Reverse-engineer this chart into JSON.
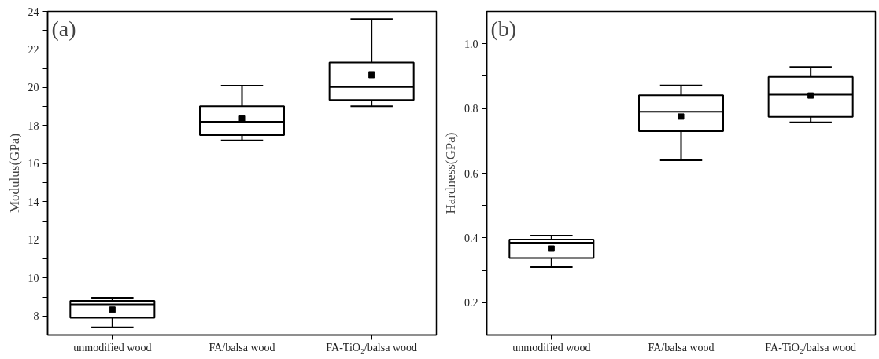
{
  "chart_data": [
    {
      "type": "box",
      "ylabel": "Modulus(GPa)",
      "annotations": [
        "(a)"
      ],
      "categories": [
        "unmodified wood",
        "FA/balsa wood",
        "FA-TiO₂/balsa wood"
      ],
      "boxes": [
        {
          "low": 7.4,
          "q1": 7.91,
          "median": 8.61,
          "q3": 8.79,
          "high": 8.96,
          "mean": 8.33
        },
        {
          "low": 17.22,
          "q1": 17.5,
          "median": 18.2,
          "q3": 19.02,
          "high": 20.1,
          "mean": 18.37
        },
        {
          "low": 19.02,
          "q1": 19.35,
          "median": 20.03,
          "q3": 21.32,
          "high": 23.6,
          "mean": 20.66
        }
      ],
      "ylim": [
        7,
        24
      ],
      "yticks": [
        {
          "value": 7,
          "label": null
        },
        8,
        {
          "value": 9,
          "label": null
        },
        10,
        {
          "value": 11,
          "label": null
        },
        12,
        {
          "value": 13,
          "label": null
        },
        14,
        {
          "value": 15,
          "label": null
        },
        16,
        {
          "value": 17,
          "label": null
        },
        18,
        {
          "value": 19,
          "label": null
        },
        20,
        {
          "value": 21,
          "label": null
        },
        22,
        {
          "value": 23,
          "label": null
        },
        24
      ],
      "grid": false,
      "marker": "square"
    },
    {
      "type": "box",
      "ylabel": "Hardness(GPa)",
      "annotations": [
        "(b)"
      ],
      "categories": [
        "unmodified wood",
        "FA/balsa wood",
        "FA-TiO₂/balsa wood"
      ],
      "boxes": [
        {
          "low": 0.31,
          "q1": 0.338,
          "median": 0.385,
          "q3": 0.395,
          "high": 0.407,
          "mean": 0.367
        },
        {
          "low": 0.64,
          "q1": 0.73,
          "median": 0.79,
          "q3": 0.841,
          "high": 0.871,
          "mean": 0.775
        },
        {
          "low": 0.757,
          "q1": 0.774,
          "median": 0.843,
          "q3": 0.898,
          "high": 0.928,
          "mean": 0.84
        }
      ],
      "ylim": [
        0.1,
        1.1
      ],
      "yticks": [
        0.2,
        {
          "value": 0.3,
          "label": null
        },
        0.4,
        {
          "value": 0.5,
          "label": null
        },
        0.6,
        {
          "value": 0.7,
          "label": null
        },
        0.8,
        {
          "value": 0.9,
          "label": null
        },
        {
          "value": 1.0,
          "label": "1.0"
        }
      ],
      "grid": false,
      "marker": "square"
    }
  ]
}
